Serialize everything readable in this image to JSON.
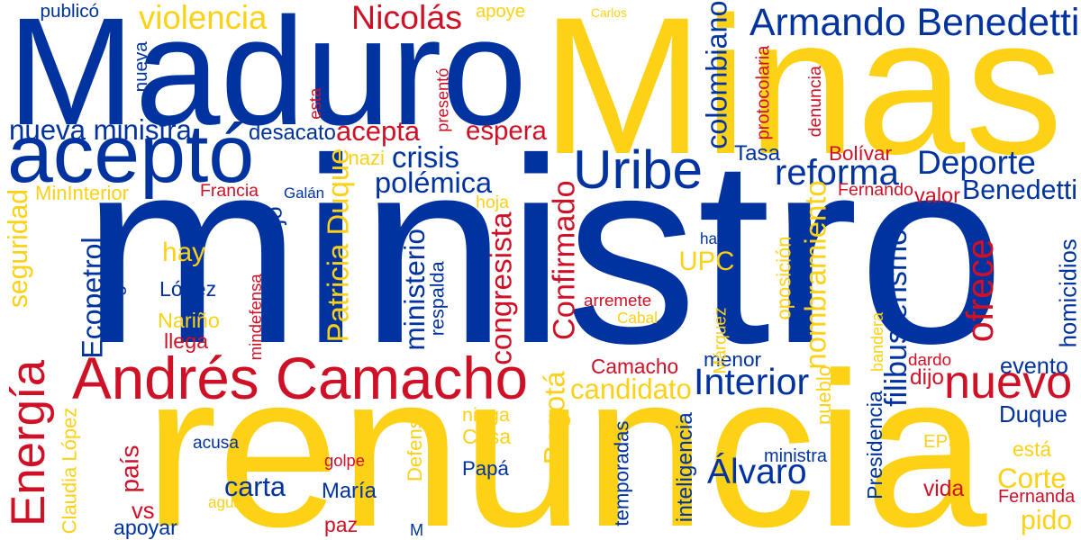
{
  "palette": {
    "blue": "#0033a0",
    "yellow": "#fcd116",
    "red": "#ce1126"
  },
  "words": [
    {
      "text": "ministro",
      "color": "blue",
      "rot": 0
    },
    {
      "text": "renuncia",
      "color": "yellow",
      "rot": 0
    },
    {
      "text": "Maduro",
      "color": "blue",
      "rot": 0
    },
    {
      "text": "Minas",
      "color": "yellow",
      "rot": 0
    },
    {
      "text": "aceptó",
      "color": "blue",
      "rot": 0
    },
    {
      "text": "Andrés Camacho",
      "color": "red",
      "rot": 0
    },
    {
      "text": "Energía",
      "color": "red",
      "rot": -90
    },
    {
      "text": "Armando Benedetti",
      "color": "blue",
      "rot": 0
    },
    {
      "text": "Uribe",
      "color": "blue",
      "rot": 0
    },
    {
      "text": "nuevo",
      "color": "red",
      "rot": 0
    },
    {
      "text": "violencia",
      "color": "yellow",
      "rot": 0
    },
    {
      "text": "Nicolás",
      "color": "red",
      "rot": 0
    },
    {
      "text": "crisis",
      "color": "blue",
      "rot": 0
    },
    {
      "text": "reforma",
      "color": "blue",
      "rot": 0
    },
    {
      "text": "Deporte",
      "color": "blue",
      "rot": 0
    },
    {
      "text": "Benedetti",
      "color": "blue",
      "rot": 0
    },
    {
      "text": "Patricia Duque",
      "color": "yellow",
      "rot": -90
    },
    {
      "text": "ministerio",
      "color": "blue",
      "rot": -90
    },
    {
      "text": "congresista",
      "color": "red",
      "rot": -90
    },
    {
      "text": "Confirmado",
      "color": "red",
      "rot": -90
    },
    {
      "text": "nombramiento",
      "color": "yellow",
      "rot": -90
    },
    {
      "text": "filibusterismo",
      "color": "blue",
      "rot": -90
    },
    {
      "text": "ofrece",
      "color": "red",
      "rot": -90
    },
    {
      "text": "Interior",
      "color": "blue",
      "rot": 0
    },
    {
      "text": "candidato",
      "color": "yellow",
      "rot": 0
    },
    {
      "text": "Bogotá",
      "color": "yellow",
      "rot": -90
    },
    {
      "text": "Álvaro",
      "color": "blue",
      "rot": 0
    },
    {
      "text": "carta",
      "color": "blue",
      "rot": 0
    },
    {
      "text": "está",
      "color": "yellow",
      "rot": 0
    },
    {
      "text": "Corte",
      "color": "yellow",
      "rot": 0
    },
    {
      "text": "Duque",
      "color": "blue",
      "rot": 0
    },
    {
      "text": "pido",
      "color": "yellow",
      "rot": 0
    },
    {
      "text": "acepta",
      "color": "red",
      "rot": 0
    },
    {
      "text": "espera",
      "color": "red",
      "rot": 0
    },
    {
      "text": "polémica",
      "color": "blue",
      "rot": 0
    },
    {
      "text": "nueva ministra",
      "color": "blue",
      "rot": 0
    },
    {
      "text": "colombiano",
      "color": "blue",
      "rot": -90
    },
    {
      "text": "apoye",
      "color": "yellow",
      "rot": 0
    },
    {
      "text": "hay",
      "color": "yellow",
      "rot": 0
    },
    {
      "text": "UPC",
      "color": "yellow",
      "rot": 0
    },
    {
      "text": "desacato",
      "color": "blue",
      "rot": 0
    },
    {
      "text": "Ecopetrol",
      "color": "blue",
      "rot": -90
    },
    {
      "text": "seguridad",
      "color": "yellow",
      "rot": -90
    },
    {
      "text": "consejo",
      "color": "blue",
      "rot": -90
    },
    {
      "text": "Presidencia",
      "color": "blue",
      "rot": -90
    },
    {
      "text": "homicidios",
      "color": "blue",
      "rot": -90
    },
    {
      "text": "Bolívar",
      "color": "red",
      "rot": 0
    },
    {
      "text": "Tasa",
      "color": "blue",
      "rot": 0
    },
    {
      "text": "valor",
      "color": "red",
      "rot": 0
    },
    {
      "text": "López",
      "color": "blue",
      "rot": 0
    },
    {
      "text": "llega",
      "color": "red",
      "rot": 0
    },
    {
      "text": "Nariño",
      "color": "yellow",
      "rot": 0
    },
    {
      "text": "Camacho",
      "color": "red",
      "rot": 0
    },
    {
      "text": "menor",
      "color": "blue",
      "rot": 0
    },
    {
      "text": "dijo",
      "color": "red",
      "rot": 0
    },
    {
      "text": "evento",
      "color": "blue",
      "rot": 0
    },
    {
      "text": "dardo",
      "color": "red",
      "rot": 0
    },
    {
      "text": "niega",
      "color": "yellow",
      "rot": 0
    },
    {
      "text": "Casa",
      "color": "yellow",
      "rot": 0
    },
    {
      "text": "Papá",
      "color": "blue",
      "rot": 0
    },
    {
      "text": "María",
      "color": "blue",
      "rot": 0
    },
    {
      "text": "paz",
      "color": "red",
      "rot": 0
    },
    {
      "text": "vs",
      "color": "red",
      "rot": 0
    },
    {
      "text": "apoyar",
      "color": "blue",
      "rot": 0
    },
    {
      "text": "vida",
      "color": "red",
      "rot": 0
    },
    {
      "text": "EPS",
      "color": "yellow",
      "rot": 0
    },
    {
      "text": "Fernanda",
      "color": "red",
      "rot": 0
    },
    {
      "text": "ministra",
      "color": "blue",
      "rot": 0
    },
    {
      "text": "país",
      "color": "red",
      "rot": -90
    },
    {
      "text": "acusa",
      "color": "blue",
      "rot": 0
    },
    {
      "text": "golpe",
      "color": "red",
      "rot": 0
    },
    {
      "text": "agua",
      "color": "yellow",
      "rot": 0
    },
    {
      "text": "Claudia López",
      "color": "yellow",
      "rot": -90
    },
    {
      "text": "Defensa",
      "color": "yellow",
      "rot": -90
    },
    {
      "text": "temporadas",
      "color": "blue",
      "rot": -90
    },
    {
      "text": "inteligencia",
      "color": "blue",
      "rot": -90
    },
    {
      "text": "pueblo",
      "color": "yellow",
      "rot": -90
    },
    {
      "text": "bandera",
      "color": "yellow",
      "rot": -90
    },
    {
      "text": "Márquez",
      "color": "yellow",
      "rot": -90
    },
    {
      "text": "oposición",
      "color": "yellow",
      "rot": -90
    },
    {
      "text": "haya",
      "color": "blue",
      "rot": 0
    },
    {
      "text": "arremete",
      "color": "red",
      "rot": 0
    },
    {
      "text": "Cabal",
      "color": "yellow",
      "rot": 0
    },
    {
      "text": "respalda",
      "color": "blue",
      "rot": -90
    },
    {
      "text": "mindefensa",
      "color": "red",
      "rot": -90
    },
    {
      "text": "Congreso",
      "color": "blue",
      "rot": -90
    },
    {
      "text": "Francia",
      "color": "red",
      "rot": 0
    },
    {
      "text": "Galán",
      "color": "blue",
      "rot": 0
    },
    {
      "text": "MinInterior",
      "color": "yellow",
      "rot": 0
    },
    {
      "text": "hoja",
      "color": "yellow",
      "rot": 0
    },
    {
      "text": "nazi",
      "color": "yellow",
      "rot": 0
    },
    {
      "text": "Fernando",
      "color": "red",
      "rot": 0
    },
    {
      "text": "publicó",
      "color": "blue",
      "rot": 0
    },
    {
      "text": "nueva",
      "color": "blue",
      "rot": -90
    },
    {
      "text": "esta",
      "color": "red",
      "rot": -90
    },
    {
      "text": "presentó",
      "color": "red",
      "rot": -90
    },
    {
      "text": "Carlos",
      "color": "yellow",
      "rot": 0
    },
    {
      "text": "protocolaria",
      "color": "red",
      "rot": -90
    },
    {
      "text": "denuncia",
      "color": "red",
      "rot": -90
    },
    {
      "text": "M",
      "color": "blue",
      "rot": 0
    }
  ]
}
